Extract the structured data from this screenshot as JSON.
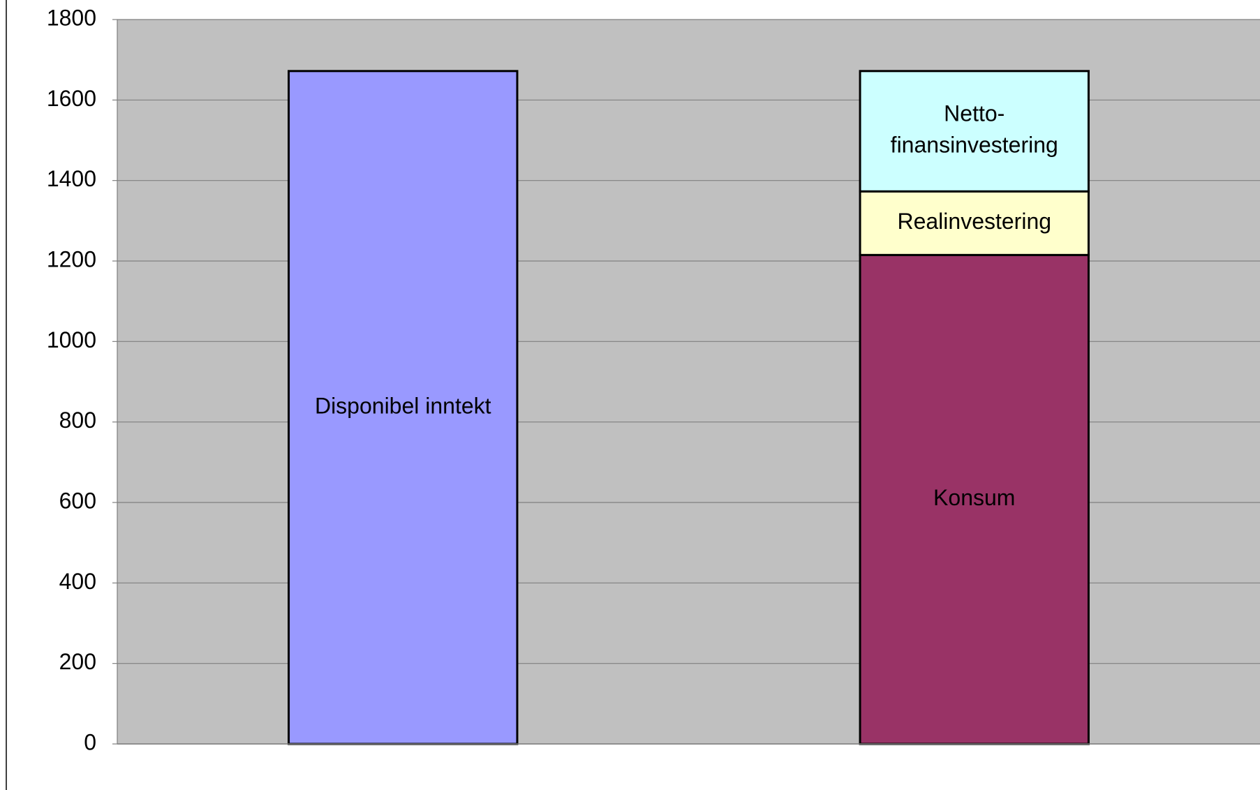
{
  "chart_data": {
    "type": "stacked_bar",
    "categories": [
      null,
      null
    ],
    "series": [
      {
        "name": "Disponibel inntekt",
        "color": "#9999ff",
        "values": [
          1672,
          null
        ]
      },
      {
        "name": "Konsum",
        "color": "#993366",
        "values": [
          null,
          1215
        ]
      },
      {
        "name": "Realinvestering",
        "color": "#ffffcc",
        "values": [
          null,
          158
        ]
      },
      {
        "name": "Netto-finansinvestering",
        "color": "#ccffff",
        "values": [
          null,
          299
        ]
      }
    ],
    "ylim": [
      0,
      1800
    ],
    "yticks": [
      0,
      200,
      400,
      600,
      800,
      1000,
      1200,
      1400,
      1600,
      1800
    ],
    "grid": true,
    "background": "#c0c0c0"
  }
}
